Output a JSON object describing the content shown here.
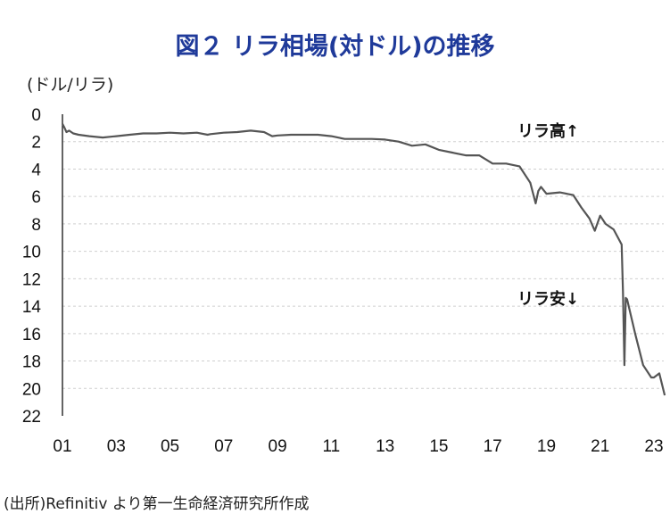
{
  "chart_data": {
    "type": "line",
    "title": "図２ リラ相場(対ドル)の推移",
    "ylabel": "(ドル/リラ)",
    "source": "(出所)Refinitiv より第一生命経済研究所作成",
    "x_ticks": [
      "01",
      "03",
      "05",
      "07",
      "09",
      "11",
      "13",
      "15",
      "17",
      "19",
      "21",
      "23"
    ],
    "y_ticks": [
      0,
      2,
      4,
      6,
      8,
      10,
      12,
      14,
      16,
      18,
      20,
      22
    ],
    "ylim": [
      0,
      22
    ],
    "y_inverted": true,
    "grid": true,
    "annotations": {
      "up": "リラ高↑",
      "down": "リラ安↓"
    },
    "series": [
      {
        "x": [
          2001.0,
          2001.08,
          2001.15,
          2001.25,
          2001.4,
          2001.6,
          2002.0,
          2002.5,
          2003.0,
          2003.5,
          2004.0,
          2004.5,
          2005.0,
          2005.5,
          2006.0,
          2006.4,
          2006.5,
          2007.0,
          2007.5,
          2008.0,
          2008.5,
          2008.8,
          2009.0,
          2009.5,
          2010.0,
          2010.5,
          2011.0,
          2011.5,
          2012.0,
          2012.5,
          2013.0,
          2013.5,
          2014.0,
          2014.5,
          2015.0,
          2015.5,
          2016.0,
          2016.5,
          2017.0,
          2017.5,
          2018.0,
          2018.4,
          2018.6,
          2018.7,
          2018.8,
          2019.0,
          2019.5,
          2020.0,
          2020.3,
          2020.6,
          2020.8,
          2021.0,
          2021.2,
          2021.5,
          2021.8,
          2021.85,
          2021.9,
          2021.95,
          2022.0,
          2022.3,
          2022.6,
          2022.9,
          2023.0,
          2023.2,
          2023.4
        ],
        "values": [
          0.7,
          1.0,
          1.3,
          1.2,
          1.4,
          1.5,
          1.6,
          1.7,
          1.6,
          1.5,
          1.4,
          1.4,
          1.35,
          1.4,
          1.35,
          1.5,
          1.45,
          1.35,
          1.3,
          1.2,
          1.3,
          1.6,
          1.55,
          1.5,
          1.5,
          1.5,
          1.6,
          1.8,
          1.8,
          1.8,
          1.85,
          2.0,
          2.3,
          2.2,
          2.6,
          2.8,
          3.0,
          3.0,
          3.6,
          3.6,
          3.8,
          5.0,
          6.5,
          5.6,
          5.3,
          5.8,
          5.7,
          5.9,
          6.8,
          7.6,
          8.5,
          7.4,
          8.0,
          8.4,
          9.5,
          13.0,
          18.3,
          13.4,
          13.5,
          16.0,
          18.3,
          19.2,
          19.2,
          18.9,
          20.5
        ]
      }
    ]
  }
}
